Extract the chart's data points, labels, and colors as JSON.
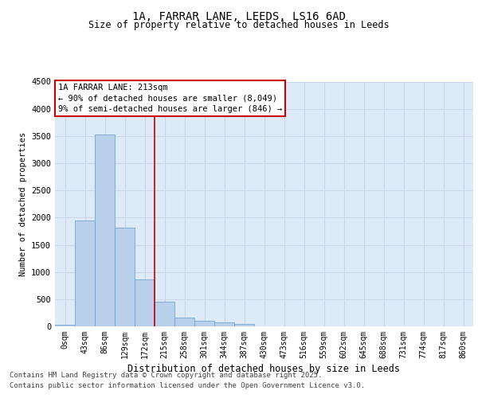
{
  "title": "1A, FARRAR LANE, LEEDS, LS16 6AD",
  "subtitle": "Size of property relative to detached houses in Leeds",
  "xlabel": "Distribution of detached houses by size in Leeds",
  "ylabel": "Number of detached properties",
  "categories": [
    "0sqm",
    "43sqm",
    "86sqm",
    "129sqm",
    "172sqm",
    "215sqm",
    "258sqm",
    "301sqm",
    "344sqm",
    "387sqm",
    "430sqm",
    "473sqm",
    "516sqm",
    "559sqm",
    "602sqm",
    "645sqm",
    "688sqm",
    "731sqm",
    "774sqm",
    "817sqm",
    "860sqm"
  ],
  "values": [
    30,
    1940,
    3520,
    1820,
    860,
    450,
    165,
    100,
    70,
    40,
    0,
    0,
    0,
    0,
    0,
    0,
    0,
    0,
    0,
    0,
    0
  ],
  "bar_color": "#b8d0ea",
  "bar_edge_color": "#6699cc",
  "vline_x_index": 5,
  "vline_color": "#cc0000",
  "annotation_text": "1A FARRAR LANE: 213sqm\n← 90% of detached houses are smaller (8,049)\n9% of semi-detached houses are larger (846) →",
  "annotation_box_color": "#cc0000",
  "annotation_fontsize": 7.5,
  "ylim": [
    0,
    4500
  ],
  "yticks": [
    0,
    500,
    1000,
    1500,
    2000,
    2500,
    3000,
    3500,
    4000,
    4500
  ],
  "grid_color": "#c8d8ea",
  "background_color": "#ddeaf8",
  "footer_line1": "Contains HM Land Registry data © Crown copyright and database right 2025.",
  "footer_line2": "Contains public sector information licensed under the Open Government Licence v3.0.",
  "title_fontsize": 10,
  "subtitle_fontsize": 8.5,
  "xlabel_fontsize": 8.5,
  "ylabel_fontsize": 7.5,
  "footer_fontsize": 6.5,
  "tick_fontsize": 7
}
